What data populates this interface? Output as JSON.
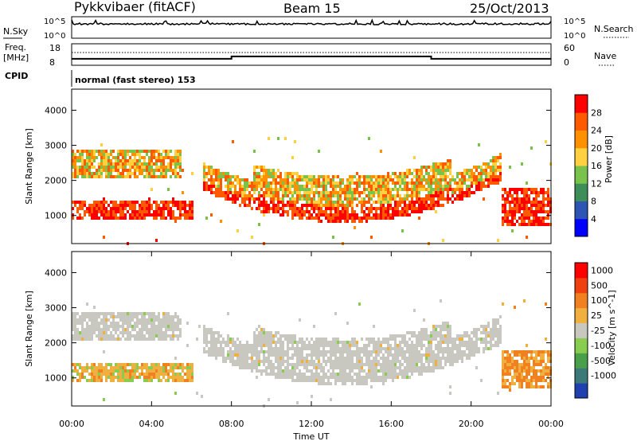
{
  "header": {
    "station": "Pykkvibaer (fitACF)",
    "beam": "Beam 15",
    "date": "25/Oct/2013"
  },
  "summary_panels": {
    "nsky": {
      "left_label": "N.Sky",
      "right_label": "N.Search",
      "left_ticks": [
        "10^5",
        "10^0"
      ],
      "right_ticks": [
        "10^5",
        "10^0"
      ]
    },
    "freq": {
      "left_label_line1": "Freq.",
      "left_label_line2": "[MHz]",
      "left_ticks": [
        "18",
        "8"
      ],
      "right_label": "Nave",
      "right_ticks": [
        "60",
        "0"
      ],
      "freq_steps": [
        {
          "t_start": 0,
          "t_end": 8,
          "freq": 10.5
        },
        {
          "t_start": 8,
          "t_end": 18,
          "freq": 12.0
        },
        {
          "t_start": 18,
          "t_end": 24,
          "freq": 10.5
        }
      ]
    },
    "cpid": {
      "label": "CPID",
      "text": "normal (fast stereo) 153"
    }
  },
  "chart_data": [
    {
      "type": "heatmap",
      "name": "power",
      "xlabel": "",
      "ylabel": "Slant Range [km]",
      "xlim": [
        0,
        24
      ],
      "ylim": [
        200,
        4600
      ],
      "yticks": [
        1000,
        2000,
        3000,
        4000
      ],
      "colorbar_label": "Power [dB]",
      "colorbar_ticks": [
        "4",
        "8",
        "12",
        "16",
        "20",
        "24",
        "28"
      ],
      "colorbar_colors": [
        "#0000ff",
        "#2e55b4",
        "#3e8e5a",
        "#79c24b",
        "#ffd040",
        "#ff9000",
        "#ff5a00",
        "#ff0000"
      ]
    },
    {
      "type": "heatmap",
      "name": "velocity",
      "xlabel": "Time UT",
      "ylabel": "Slant Range [km]",
      "xlim": [
        0,
        24
      ],
      "ylim": [
        200,
        4600
      ],
      "yticks": [
        1000,
        2000,
        3000,
        4000
      ],
      "xticks": [
        0,
        4,
        8,
        12,
        16,
        20,
        24
      ],
      "xtick_labels": [
        "00:00",
        "04:00",
        "08:00",
        "12:00",
        "16:00",
        "20:00",
        "00:00"
      ],
      "colorbar_label": "Velocity [m s^-1]",
      "colorbar_ticks": [
        "1000",
        "500",
        "100",
        "25",
        "-25",
        "-100",
        "-500",
        "-1000"
      ],
      "colorbar_colors": [
        "#2040b0",
        "#3c7a7a",
        "#4aa04a",
        "#88cc50",
        "#c8c8c0",
        "#f0b040",
        "#f08020",
        "#f04010",
        "#ff0000"
      ]
    }
  ]
}
